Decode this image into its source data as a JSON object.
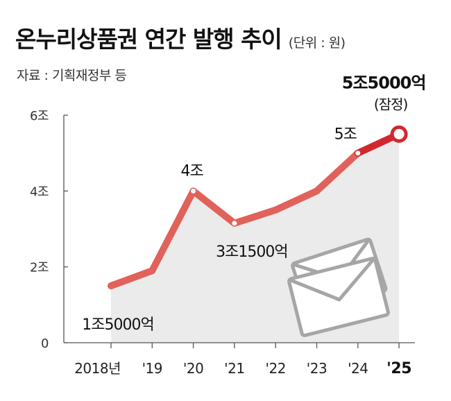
{
  "header": {
    "title": "온누리상품권 연간 발행 추이",
    "unit": "(단위 : 원)",
    "source": "자료 : 기획재정부 등"
  },
  "colors": {
    "line": "#e0625a",
    "line_last": "#d3272e",
    "area": "#ebebeb",
    "axis": "#555555",
    "envelope": "#a6a6a6"
  },
  "chart_data": {
    "type": "line",
    "title": "온누리상품권 연간 발행 추이",
    "ylabel": "",
    "xlabel": "",
    "unit": "(단위 : 원)",
    "y_unit": "조",
    "ylim": [
      0,
      6
    ],
    "yticks": [
      {
        "value": 0,
        "label": "0"
      },
      {
        "value": 2,
        "label": "2조"
      },
      {
        "value": 4,
        "label": "4조"
      },
      {
        "value": 6,
        "label": "6조"
      }
    ],
    "categories": [
      "2018년",
      "'19",
      "'20",
      "'21",
      "'22",
      "'23",
      "'24",
      "'25"
    ],
    "values": [
      1.5,
      1.9,
      4.0,
      3.15,
      3.5,
      4.0,
      5.0,
      5.5
    ],
    "grid": false,
    "data_labels": [
      {
        "index": 0,
        "text": "1조5000억"
      },
      {
        "index": 2,
        "text": "4조"
      },
      {
        "index": 3,
        "text": "3조1500억"
      },
      {
        "index": 6,
        "text": "5조"
      },
      {
        "index": 7,
        "text": "5조5000억",
        "note": "(잠정)"
      }
    ],
    "highlight_last": true
  }
}
